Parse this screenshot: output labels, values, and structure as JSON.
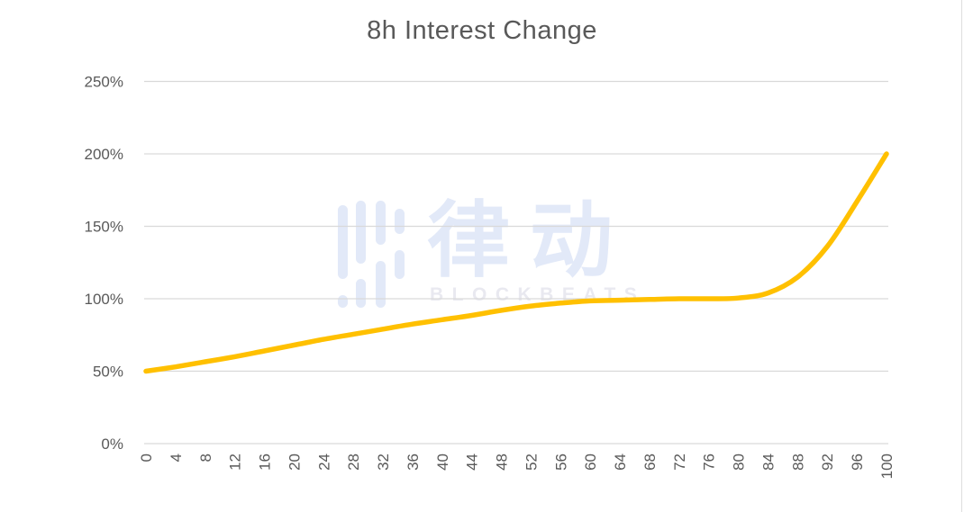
{
  "title": "8h Interest Change",
  "watermark": {
    "cjk": "律动",
    "latin": "BLOCKBEATS"
  },
  "colors": {
    "line": "#FFC000",
    "grid": "#D9D9D9",
    "axis_text": "#595959",
    "title_text": "#595959",
    "watermark": "#E2E9F8",
    "watermark_latin": "#E9E9F0",
    "background": "#FFFFFF"
  },
  "chart_data": {
    "type": "line",
    "title": "8h Interest Change",
    "categories": [
      0,
      4,
      8,
      12,
      16,
      20,
      24,
      28,
      32,
      36,
      40,
      44,
      48,
      52,
      56,
      60,
      64,
      68,
      72,
      76,
      80,
      84,
      88,
      92,
      96,
      100
    ],
    "values": [
      50,
      53,
      56.5,
      60,
      64,
      68,
      72,
      75.5,
      79,
      82.5,
      85.5,
      88.5,
      92,
      95,
      97,
      98.5,
      99,
      99.5,
      100,
      100,
      100.5,
      104,
      115,
      136,
      167,
      200
    ],
    "series_name": "8h Interest Change",
    "series_color": "#FFC000",
    "xlabel": "",
    "ylabel": "",
    "yticks": [
      0,
      50,
      100,
      150,
      200,
      250
    ],
    "ytick_labels": [
      "0%",
      "50%",
      "100%",
      "150%",
      "200%",
      "250%"
    ],
    "ylim": [
      0,
      250
    ],
    "xlim": [
      0,
      100
    ],
    "grid": true,
    "legend": false,
    "x_tick_rotation": -90,
    "value_unit": "%"
  }
}
